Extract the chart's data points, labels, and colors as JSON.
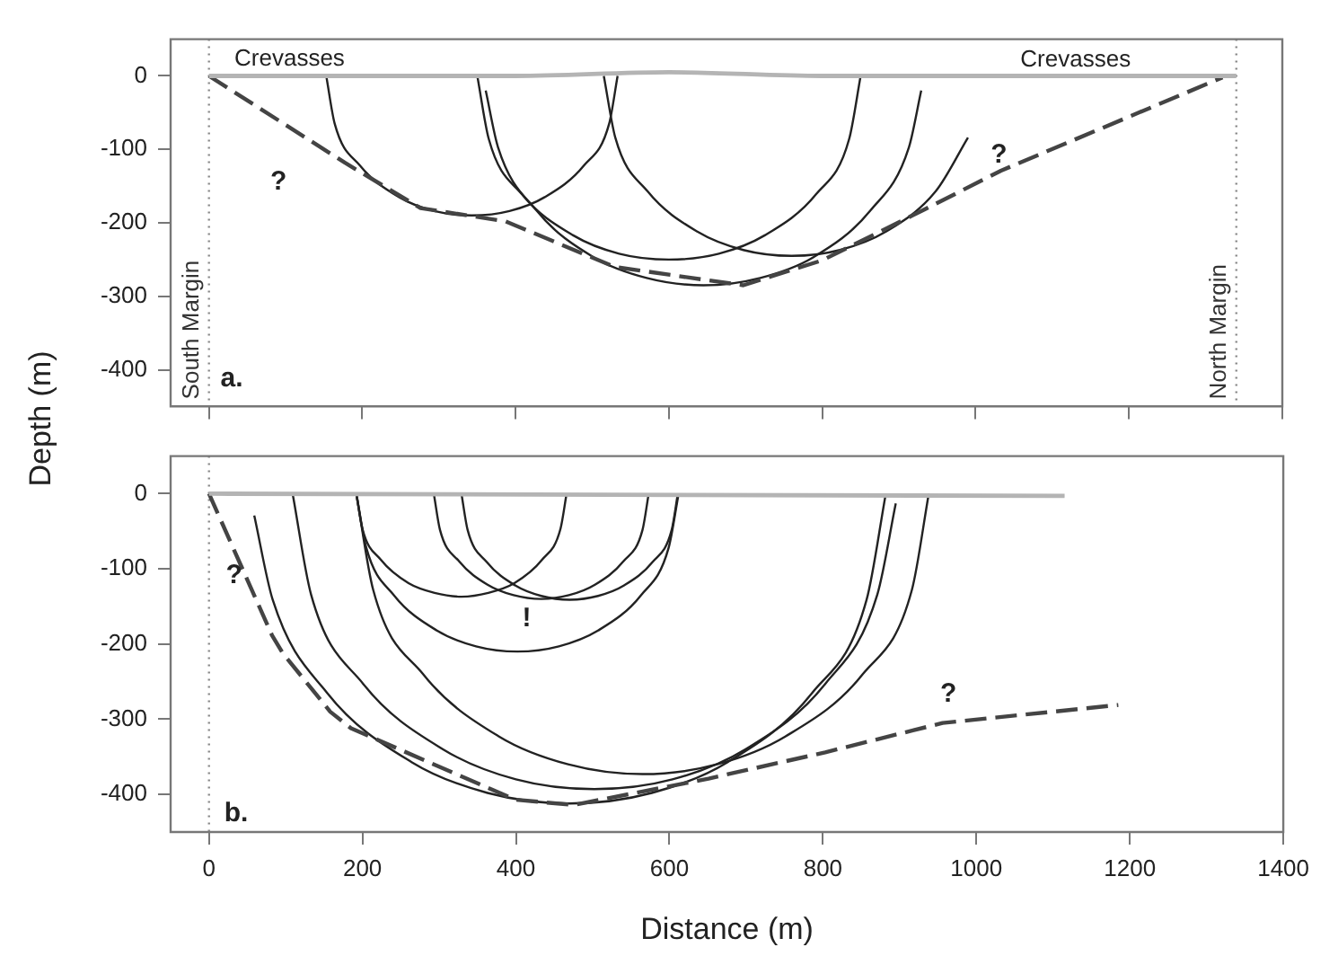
{
  "chart_data": [
    {
      "type": "line",
      "ylabel": "Depth (m)",
      "xlim": [
        -50,
        1400
      ],
      "ylim": [
        -450,
        50
      ],
      "xticks": [
        0,
        200,
        400,
        600,
        800,
        1000,
        1200,
        1400
      ],
      "yticks": [
        0,
        -100,
        -200,
        -300,
        -400
      ],
      "tick_labels": "y",
      "grid": false,
      "legend": false,
      "marker": "none",
      "series": [
        {
          "color": "#b4b4b4",
          "x": [
            0,
            400,
            600,
            800,
            1340
          ],
          "values": [
            0,
            0,
            5,
            0,
            0
          ]
        },
        {
          "color": "#444444",
          "line_style": "dashed",
          "x": [
            0,
            177,
            276,
            387,
            529,
            697,
            800,
            933,
            1033,
            1322
          ],
          "values": [
            0,
            -118,
            -180,
            -198,
            -260,
            -285,
            -251,
            -182,
            -129,
            -2
          ]
        },
        {
          "color": "#222222",
          "x": [
            153,
            164,
            197,
            248,
            294,
            343,
            392,
            438,
            489,
            522,
            533
          ],
          "values": [
            0,
            -65,
            -122,
            -165,
            -184,
            -190,
            -184,
            -165,
            -122,
            -65,
            0
          ]
        },
        {
          "color": "#222222",
          "x": [
            350,
            365,
            408,
            475,
            535,
            600,
            665,
            725,
            792,
            835,
            850
          ],
          "values": [
            0,
            -86,
            -161,
            -217,
            -242,
            -250,
            -242,
            -217,
            -161,
            -86,
            0
          ]
        },
        {
          "color": "#222222",
          "x": [
            361,
            377,
            427,
            502,
            571,
            645,
            719,
            788,
            863,
            913,
            929
          ],
          "values": [
            -20,
            -97,
            -183,
            -247,
            -275,
            -285,
            -275,
            -247,
            -183,
            -97,
            -20
          ]
        },
        {
          "color": "#222222",
          "x": [
            515,
            530,
            572,
            637,
            697,
            760,
            823,
            883,
            948,
            990
          ],
          "values": [
            0,
            -84,
            -157,
            -212,
            -237,
            -245,
            -237,
            -212,
            -157,
            -84
          ]
        }
      ],
      "ref_lines": [
        {
          "axis": "x",
          "value": 0,
          "label": "South Margin",
          "line_style": "dotted",
          "color": "#888888"
        },
        {
          "axis": "x",
          "value": 1340,
          "label": "North Margin",
          "line_style": "dotted",
          "color": "#888888"
        }
      ],
      "annotations": [
        "Crevasses",
        "Crevasses",
        "?",
        "?",
        "a."
      ]
    },
    {
      "type": "line",
      "xlabel": "Distance (m)",
      "xlim": [
        -50,
        1400
      ],
      "ylim": [
        -450,
        50
      ],
      "xticks": [
        0,
        200,
        400,
        600,
        800,
        1000,
        1200,
        1400
      ],
      "yticks": [
        0,
        -100,
        -200,
        -300,
        -400
      ],
      "grid": false,
      "legend": false,
      "marker": "none",
      "series": [
        {
          "color": "#b4b4b4",
          "x": [
            0,
            1115
          ],
          "values": [
            0,
            -3
          ]
        },
        {
          "color": "#444444",
          "line_style": "dashed",
          "x": [
            0,
            82,
            96,
            158,
            185,
            399,
            475,
            651,
            803,
            956,
            1185
          ],
          "values": [
            0,
            -188,
            -212,
            -290,
            -312,
            -407,
            -414,
            -379,
            -344,
            -305,
            -281
          ]
        },
        {
          "color": "#222222",
          "x": [
            59,
            83,
            154,
            264,
            363,
            470,
            577,
            676,
            786,
            857,
            882
          ],
          "values": [
            -29,
            -141,
            -265,
            -357,
            -398,
            -412,
            -398,
            -357,
            -265,
            -141,
            0
          ]
        },
        {
          "color": "#222222",
          "x": [
            109,
            133,
            201,
            305,
            400,
            502,
            604,
            699,
            803,
            871,
            895
          ],
          "values": [
            0,
            -134,
            -253,
            -340,
            -380,
            -393,
            -380,
            -340,
            -253,
            -134,
            -13
          ]
        },
        {
          "color": "#222222",
          "x": [
            192,
            214,
            279,
            378,
            468,
            565,
            662,
            751,
            852,
            916,
            938
          ],
          "values": [
            0,
            -128,
            -240,
            -323,
            -360,
            -373,
            -360,
            -323,
            -240,
            -128,
            0
          ]
        },
        {
          "color": "#222222",
          "x": [
            192,
            200,
            224,
            260,
            294,
            329,
            364,
            398,
            434,
            458,
            466
          ],
          "values": [
            0,
            -47,
            -88,
            -119,
            -132,
            -137,
            -132,
            -119,
            -88,
            -47,
            0
          ]
        },
        {
          "color": "#222222",
          "x": [
            293,
            301,
            326,
            363,
            397,
            433,
            469,
            503,
            540,
            565,
            573
          ],
          "values": [
            0,
            -48,
            -90,
            -121,
            -135,
            -140,
            -135,
            -121,
            -90,
            -48,
            0
          ]
        },
        {
          "color": "#222222",
          "x": [
            329,
            337,
            362,
            399,
            433,
            470,
            507,
            541,
            578,
            603,
            611
          ],
          "values": [
            0,
            -48,
            -91,
            -122,
            -136,
            -141,
            -136,
            -122,
            -91,
            -48,
            0
          ]
        },
        {
          "color": "#222222",
          "x": [
            192,
            205,
            241,
            297,
            348,
            402,
            456,
            507,
            563,
            599,
            612
          ],
          "values": [
            0,
            -72,
            -135,
            -182,
            -203,
            -210,
            -203,
            -182,
            -135,
            -72,
            0
          ]
        }
      ],
      "ref_lines": [
        {
          "axis": "x",
          "value": 0,
          "line_style": "dotted",
          "color": "#888888"
        }
      ],
      "annotations": [
        "?",
        "?",
        "!",
        "b."
      ]
    }
  ]
}
